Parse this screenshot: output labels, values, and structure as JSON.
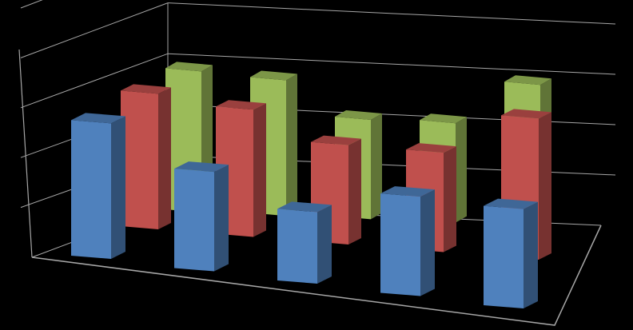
{
  "chart_data": {
    "type": "bar",
    "subtype": "3d-clustered-column",
    "title": "",
    "xlabel": "",
    "ylabel": "",
    "categories": [
      "",
      "",
      "",
      "",
      ""
    ],
    "series": [
      {
        "values": [
          4.3,
          3.0,
          2.0,
          3.0,
          3.0
        ]
      },
      {
        "values": [
          4.3,
          4.0,
          3.0,
          3.0,
          4.5
        ]
      },
      {
        "values": [
          4.5,
          4.3,
          3.0,
          3.0,
          4.5
        ]
      }
    ],
    "ylim": [
      0,
      5
    ],
    "grid": true,
    "legend": "none",
    "colors": {
      "series": [
        "#4f81bd",
        "#c0504d",
        "#9bbb59"
      ],
      "gridlines": "#a6a6a6",
      "background": "#000000"
    }
  }
}
